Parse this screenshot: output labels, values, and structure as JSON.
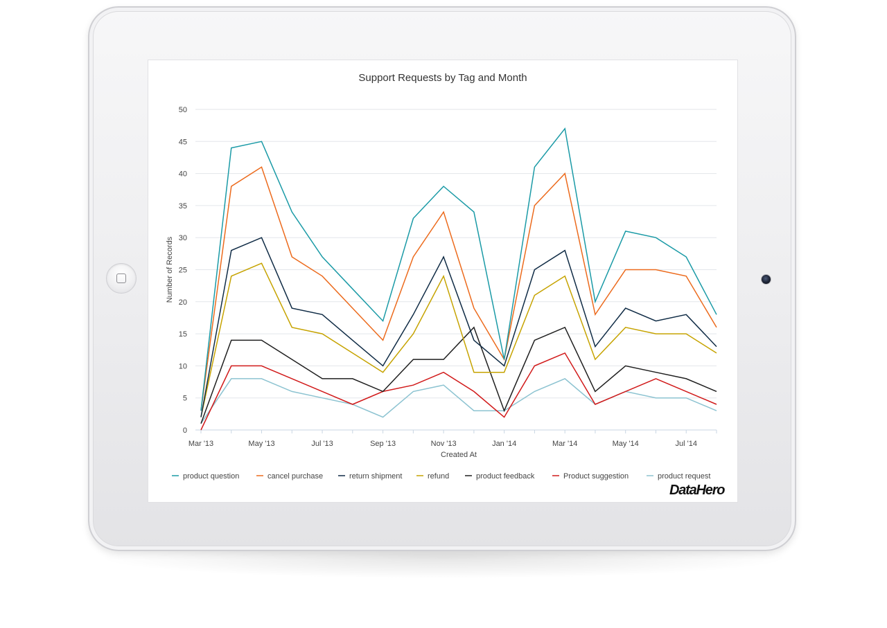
{
  "logo_text": "DataHero",
  "chart_data": {
    "type": "line",
    "title": "Support Requests by Tag and Month",
    "xlabel": "Created At",
    "ylabel": "Number of Records",
    "ylim": [
      0,
      50
    ],
    "yticks": [
      0,
      5,
      10,
      15,
      20,
      25,
      30,
      35,
      40,
      45,
      50
    ],
    "grid": true,
    "legend_position": "bottom",
    "x": [
      "Mar '13",
      "Apr '13",
      "May '13",
      "Jun '13",
      "Jul '13",
      "Aug '13",
      "Sep '13",
      "Oct '13",
      "Nov '13",
      "Dec '13",
      "Jan '14",
      "Feb '14",
      "Mar '14",
      "Apr '14",
      "May '14",
      "Jun '14",
      "Jul '14",
      "Aug '14"
    ],
    "x_tick_labels": [
      "Mar '13",
      "",
      "May '13",
      "",
      "Jul '13",
      "",
      "Sep '13",
      "",
      "Nov '13",
      "",
      "Jan '14",
      "",
      "Mar '14",
      "",
      "May '14",
      "",
      "Jul '14",
      ""
    ],
    "series": [
      {
        "name": "product question",
        "color": "#1a9aa6",
        "values": [
          3,
          44,
          45,
          34,
          27,
          22,
          17,
          33,
          38,
          34,
          11,
          41,
          47,
          20,
          31,
          30,
          27,
          18
        ]
      },
      {
        "name": "cancel purchase",
        "color": "#ec6a1c",
        "values": [
          3,
          38,
          41,
          27,
          24,
          19,
          14,
          27,
          34,
          19,
          11,
          35,
          40,
          18,
          25,
          25,
          24,
          16
        ]
      },
      {
        "name": "return shipment",
        "color": "#0f2b45",
        "values": [
          2,
          28,
          30,
          19,
          18,
          14,
          10,
          18,
          27,
          14,
          10,
          25,
          28,
          13,
          19,
          17,
          18,
          13
        ]
      },
      {
        "name": "refund",
        "color": "#c6a300",
        "values": [
          2,
          24,
          26,
          16,
          15,
          12,
          9,
          15,
          24,
          9,
          9,
          21,
          24,
          11,
          16,
          15,
          15,
          12
        ]
      },
      {
        "name": "product feedback",
        "color": "#1f1f1f",
        "values": [
          1,
          14,
          14,
          11,
          8,
          8,
          6,
          11,
          11,
          16,
          3,
          14,
          16,
          6,
          10,
          9,
          8,
          6
        ]
      },
      {
        "name": "Product suggestion",
        "color": "#d11a1a",
        "values": [
          0,
          10,
          10,
          8,
          6,
          4,
          6,
          7,
          9,
          6,
          2,
          10,
          12,
          4,
          6,
          8,
          6,
          4
        ]
      },
      {
        "name": "product request",
        "color": "#8cc3d1",
        "values": [
          1,
          8,
          8,
          6,
          5,
          4,
          2,
          6,
          7,
          3,
          3,
          6,
          8,
          4,
          6,
          5,
          5,
          3
        ]
      }
    ]
  }
}
